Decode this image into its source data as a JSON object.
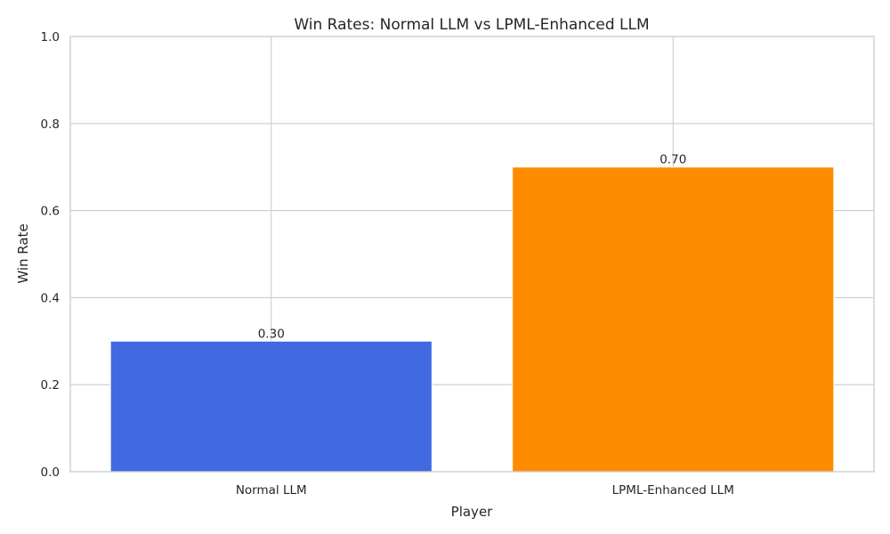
{
  "chart_data": {
    "type": "bar",
    "title": "Win Rates: Normal LLM vs LPML-Enhanced LLM",
    "xlabel": "Player",
    "ylabel": "Win Rate",
    "categories": [
      "Normal LLM",
      "LPML-Enhanced LLM"
    ],
    "values": [
      0.3,
      0.7
    ],
    "value_labels": [
      "0.30",
      "0.70"
    ],
    "colors": [
      "#4169e1",
      "#ff8c00"
    ],
    "ylim": [
      0,
      1.0
    ],
    "yticks": [
      0.0,
      0.2,
      0.4,
      0.6,
      0.8,
      1.0
    ],
    "ytick_labels": [
      "0.0",
      "0.2",
      "0.4",
      "0.6",
      "0.8",
      "1.0"
    ],
    "grid": true,
    "legend": false
  }
}
